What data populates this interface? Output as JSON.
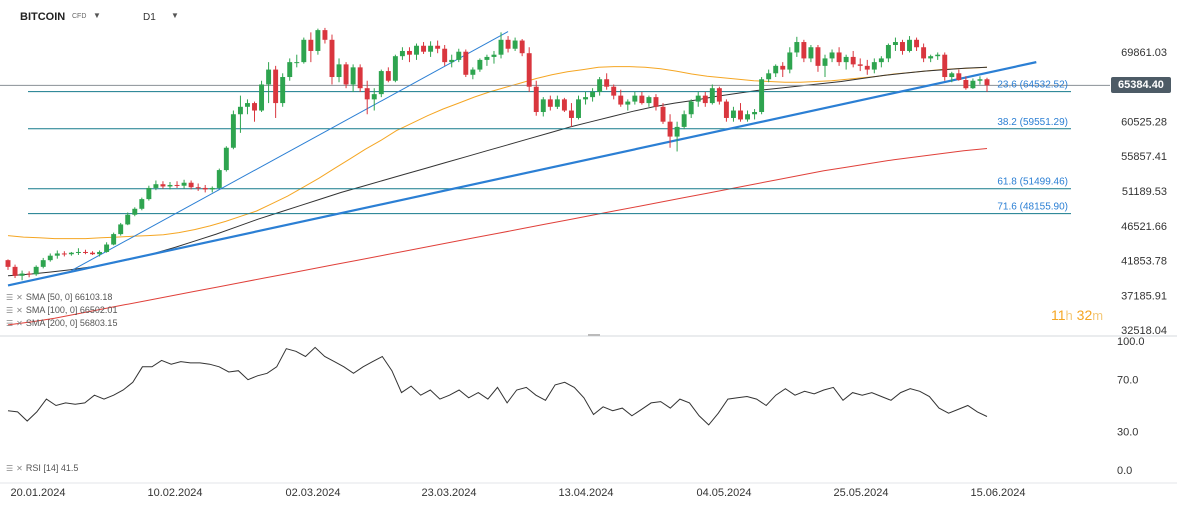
{
  "header": {
    "symbol": "BITCOIN",
    "instrument_type": "CFD",
    "timeframe": "D1"
  },
  "countdown": {
    "hours": "11",
    "h_unit": "h",
    "minutes": "32",
    "m_unit": "m"
  },
  "indicators": [
    {
      "label": "SMA [50, 0] 66103.18",
      "color": "#f5a623"
    },
    {
      "label": "SMA [100, 0] 66502.01",
      "color": "#333333"
    },
    {
      "label": "SMA [200, 0] 56803.15",
      "color": "#e0403a"
    }
  ],
  "rsi_legend": "RSI [14] 41.5",
  "current_price": "65384.40",
  "chart_data": [
    {
      "type": "candlestick",
      "title": "BITCOIN",
      "price_axis_labels": [
        "69861.03",
        "65384.40",
        "60525.28",
        "55857.41",
        "51189.53",
        "46521.66",
        "41853.78",
        "37185.91",
        "32518.04"
      ],
      "ylim": [
        32518.04,
        72500
      ],
      "x_tick_labels": [
        "20.01.2024",
        "10.02.2024",
        "02.03.2024",
        "23.03.2024",
        "13.04.2024",
        "04.05.2024",
        "25.05.2024",
        "15.06.2024"
      ],
      "ohlc": [
        [
          41900,
          42000,
          40600,
          41000
        ],
        [
          41000,
          41300,
          39500,
          39800
        ],
        [
          39800,
          40500,
          39200,
          40100
        ],
        [
          40100,
          40400,
          39600,
          40000
        ],
        [
          40000,
          41200,
          39800,
          41000
        ],
        [
          41000,
          42200,
          40800,
          41900
        ],
        [
          41900,
          42800,
          41700,
          42500
        ],
        [
          42500,
          43200,
          42100,
          42800
        ],
        [
          42800,
          43100,
          42400,
          42700
        ],
        [
          42700,
          43000,
          42500,
          42900
        ],
        [
          42900,
          43500,
          42600,
          43000
        ],
        [
          43000,
          43300,
          42700,
          42900
        ],
        [
          42900,
          43100,
          42600,
          42700
        ],
        [
          42700,
          43200,
          42400,
          43000
        ],
        [
          43000,
          44300,
          42900,
          44000
        ],
        [
          44000,
          45600,
          43900,
          45400
        ],
        [
          45400,
          46900,
          45200,
          46700
        ],
        [
          46700,
          48300,
          46600,
          48000
        ],
        [
          48000,
          49000,
          47800,
          48800
        ],
        [
          48800,
          50300,
          48600,
          50100
        ],
        [
          50100,
          51900,
          49900,
          51600
        ],
        [
          51600,
          52600,
          51300,
          52100
        ],
        [
          52100,
          52500,
          51500,
          51800
        ],
        [
          51800,
          52400,
          51400,
          52000
        ],
        [
          52000,
          52500,
          51600,
          51900
        ],
        [
          51900,
          52700,
          51500,
          52300
        ],
        [
          52300,
          52600,
          51400,
          51700
        ],
        [
          51700,
          52200,
          51200,
          51600
        ],
        [
          51600,
          52000,
          51000,
          51400
        ],
        [
          51400,
          51800,
          51000,
          51600
        ],
        [
          51600,
          54200,
          51500,
          54000
        ],
        [
          54000,
          57200,
          53800,
          57000
        ],
        [
          57000,
          62000,
          56800,
          61500
        ],
        [
          61500,
          64000,
          59000,
          62500
        ],
        [
          62500,
          63500,
          61500,
          63000
        ],
        [
          63000,
          63200,
          60500,
          62000
        ],
        [
          62000,
          66000,
          61800,
          65500
        ],
        [
          65500,
          68500,
          63000,
          67500
        ],
        [
          67500,
          68000,
          61000,
          63000
        ],
        [
          63000,
          67000,
          62500,
          66500
        ],
        [
          66500,
          69000,
          66000,
          68500
        ],
        [
          68500,
          69500,
          67800,
          68500
        ],
        [
          68500,
          71800,
          68300,
          71500
        ],
        [
          71500,
          72500,
          68500,
          70000
        ],
        [
          70000,
          73000,
          69500,
          72800
        ],
        [
          72800,
          73100,
          71000,
          71500
        ],
        [
          71500,
          72200,
          65500,
          66500
        ],
        [
          66500,
          69000,
          65800,
          68200
        ],
        [
          68200,
          68500,
          65000,
          65500
        ],
        [
          65500,
          68200,
          64500,
          67800
        ],
        [
          67800,
          68200,
          64500,
          65000
        ],
        [
          65000,
          66000,
          61500,
          63500
        ],
        [
          63500,
          65000,
          62000,
          64200
        ],
        [
          64200,
          67500,
          63800,
          67300
        ],
        [
          67300,
          67800,
          65800,
          66000
        ],
        [
          66000,
          69500,
          65800,
          69300
        ],
        [
          69300,
          70500,
          68800,
          70000
        ],
        [
          70000,
          70500,
          68500,
          69500
        ],
        [
          69500,
          71000,
          68800,
          70700
        ],
        [
          70700,
          71200,
          69600,
          69900
        ],
        [
          69900,
          71300,
          69200,
          70700
        ],
        [
          70700,
          71400,
          69700,
          70300
        ],
        [
          70300,
          70800,
          68000,
          68500
        ],
        [
          68500,
          69500,
          67800,
          68800
        ],
        [
          68800,
          70300,
          68500,
          69900
        ],
        [
          69900,
          70200,
          66500,
          66800
        ],
        [
          66800,
          67800,
          66200,
          67500
        ],
        [
          67500,
          69000,
          67200,
          68800
        ],
        [
          68800,
          69500,
          68000,
          69200
        ],
        [
          69200,
          70000,
          68300,
          69500
        ],
        [
          69500,
          72500,
          69000,
          71500
        ],
        [
          71500,
          72000,
          69800,
          70300
        ],
        [
          70300,
          71800,
          70000,
          71400
        ],
        [
          71400,
          71600,
          69300,
          69700
        ],
        [
          69700,
          70500,
          64500,
          65200
        ],
        [
          65200,
          66000,
          61300,
          61800
        ],
        [
          61800,
          63800,
          61200,
          63500
        ],
        [
          63500,
          64000,
          62000,
          62500
        ],
        [
          62500,
          64000,
          62200,
          63500
        ],
        [
          63500,
          63700,
          61800,
          62000
        ],
        [
          62000,
          63000,
          59800,
          61000
        ],
        [
          61000,
          64000,
          60800,
          63500
        ],
        [
          63500,
          64500,
          62800,
          63800
        ],
        [
          63800,
          65000,
          63200,
          64500
        ],
        [
          64500,
          66500,
          64000,
          66200
        ],
        [
          66200,
          67000,
          64800,
          65200
        ],
        [
          65200,
          65500,
          63500,
          64000
        ],
        [
          64000,
          64800,
          62500,
          62800
        ],
        [
          62800,
          63500,
          62000,
          63200
        ],
        [
          63200,
          64500,
          62800,
          64000
        ],
        [
          64000,
          64500,
          62800,
          63000
        ],
        [
          63000,
          64000,
          62500,
          63800
        ],
        [
          63800,
          64200,
          62000,
          62500
        ],
        [
          62500,
          63000,
          60200,
          60500
        ],
        [
          60500,
          61500,
          57000,
          58500
        ],
        [
          58500,
          60500,
          56500,
          59800
        ],
        [
          59800,
          62000,
          59500,
          61500
        ],
        [
          61500,
          63500,
          61000,
          63200
        ],
        [
          63200,
          64500,
          62500,
          64000
        ],
        [
          64000,
          64500,
          62500,
          63000
        ],
        [
          63000,
          65500,
          62800,
          65000
        ],
        [
          65000,
          65200,
          62800,
          63200
        ],
        [
          63200,
          63500,
          60500,
          61000
        ],
        [
          61000,
          62500,
          60500,
          62000
        ],
        [
          62000,
          63000,
          60500,
          60800
        ],
        [
          60800,
          62000,
          60500,
          61500
        ],
        [
          61500,
          62200,
          60800,
          61800
        ],
        [
          61800,
          66500,
          61500,
          66200
        ],
        [
          66200,
          67500,
          65800,
          67000
        ],
        [
          67000,
          68200,
          66500,
          68000
        ],
        [
          68000,
          68500,
          66500,
          67500
        ],
        [
          67500,
          70500,
          67000,
          69800
        ],
        [
          69800,
          71900,
          69200,
          71200
        ],
        [
          71200,
          71500,
          68500,
          69000
        ],
        [
          69000,
          70800,
          68500,
          70500
        ],
        [
          70500,
          70800,
          67200,
          68000
        ],
        [
          68000,
          69500,
          66500,
          69000
        ],
        [
          69000,
          70200,
          68500,
          69800
        ],
        [
          69800,
          70500,
          68000,
          68500
        ],
        [
          68500,
          69500,
          67500,
          69200
        ],
        [
          69200,
          70000,
          67800,
          68200
        ],
        [
          68200,
          69000,
          67300,
          68000
        ],
        [
          68000,
          68800,
          66800,
          67500
        ],
        [
          67500,
          69000,
          67000,
          68500
        ],
        [
          68500,
          69300,
          67800,
          69000
        ],
        [
          69000,
          71000,
          68500,
          70800
        ],
        [
          70800,
          71800,
          70000,
          71200
        ],
        [
          71200,
          71500,
          69500,
          70000
        ],
        [
          70000,
          72000,
          69800,
          71500
        ],
        [
          71500,
          71800,
          70000,
          70500
        ],
        [
          70500,
          71000,
          68500,
          69000
        ],
        [
          69000,
          69500,
          68500,
          69300
        ],
        [
          69300,
          69800,
          68800,
          69500
        ],
        [
          69500,
          69800,
          66000,
          66500
        ],
        [
          66500,
          67200,
          65800,
          67000
        ],
        [
          67000,
          67500,
          66000,
          66100
        ],
        [
          66100,
          66600,
          64800,
          65000
        ],
        [
          65000,
          66300,
          64900,
          66000
        ],
        [
          66000,
          66600,
          65500,
          66200
        ],
        [
          66200,
          66400,
          64500,
          65384
        ]
      ],
      "sma": [
        {
          "label": "SMA [50, 0] 66103.18",
          "color": "#f5a623",
          "y": [
            45200,
            45000,
            44900,
            44800,
            44800,
            44800,
            44900,
            45000,
            45100,
            45200,
            45300,
            45600,
            46000,
            46500,
            47100,
            47800,
            48500,
            49500,
            50500,
            51700,
            52900,
            54200,
            55500,
            56800,
            58000,
            59300,
            60300,
            61300,
            62200,
            63000,
            63800,
            64500,
            65100,
            65700,
            66300,
            66800,
            67200,
            67500,
            67800,
            67900,
            67900,
            67800,
            67600,
            67300,
            66900,
            66600,
            66400,
            66200,
            66000,
            65900,
            65800,
            65800,
            65900,
            66000,
            66200,
            66400,
            66600,
            66900,
            67100,
            67300,
            67500,
            67600,
            67700,
            67800
          ]
        },
        {
          "label": "SMA [100, 0] 66502.01",
          "color": "#333333",
          "y": [
            39800,
            40000,
            40300,
            40600,
            41000,
            41500,
            42100,
            42800,
            43600,
            44500,
            45400,
            46400,
            47400,
            48300,
            49200,
            50100,
            51000,
            51800,
            52600,
            53400,
            54200,
            55000,
            55800,
            56600,
            57400,
            58200,
            59000,
            59800,
            60500,
            61200,
            61900,
            62500,
            63000,
            63400,
            63900,
            64300,
            64700,
            65000,
            65300,
            65600,
            65900,
            66300,
            66700,
            67000,
            67300,
            67500,
            67700,
            67800
          ]
        },
        {
          "label": "SMA [200, 0] 56803.15",
          "color": "#e0403a",
          "y": [
            33200,
            33600,
            34100,
            34700,
            35300,
            35900,
            36500,
            37100,
            37700,
            38300,
            38900,
            39500,
            40100,
            40700,
            41300,
            41900,
            42500,
            43100,
            43700,
            44300,
            44900,
            45500,
            46100,
            46700,
            47300,
            47900,
            48500,
            49100,
            49700,
            50300,
            50900,
            51500,
            52100,
            52700,
            53300,
            53900,
            54400,
            54900,
            55400,
            55800,
            56200,
            56600,
            56900
          ]
        }
      ],
      "fib_levels": [
        {
          "ratio": "23.6",
          "label": "23.6 (64532.52)",
          "value": 64532.52
        },
        {
          "ratio": "38.2",
          "label": "38.2 (59551.29)",
          "value": 59551.29
        },
        {
          "ratio": "61.8",
          "label": "61.8 (51499.46)",
          "value": 51499.46
        },
        {
          "ratio": "71.6",
          "label": "71.6 (48155.90)",
          "value": 48155.9
        }
      ],
      "horizontal_line_value": 65384.4,
      "trendlines": [
        {
          "from": [
            0,
            38500
          ],
          "to": [
            146,
            68500
          ],
          "color": "#2b7fd4"
        },
        {
          "from": [
            9,
            40500
          ],
          "to": [
            71,
            72600
          ],
          "color": "#2b7fd4"
        }
      ],
      "grid": false
    },
    {
      "type": "line",
      "title": "RSI [14] 41.5",
      "ylim": [
        0,
        100
      ],
      "y_tick_labels": [
        "100.0",
        "70.0",
        "30.0",
        "0.0"
      ],
      "y": [
        46,
        45,
        38,
        45,
        55,
        50,
        52,
        51,
        52,
        58,
        55,
        58,
        62,
        68,
        80,
        80,
        85,
        82,
        84,
        83,
        83,
        82,
        80,
        76,
        77,
        70,
        73,
        75,
        80,
        94,
        92,
        88,
        95,
        88,
        84,
        80,
        75,
        80,
        84,
        88,
        77,
        60,
        65,
        58,
        62,
        55,
        58,
        62,
        56,
        60,
        55,
        64,
        52,
        62,
        64,
        58,
        54,
        66,
        68,
        64,
        56,
        43,
        49,
        46,
        48,
        42,
        47,
        52,
        53,
        48,
        55,
        52,
        42,
        35,
        44,
        55,
        56,
        57,
        55,
        50,
        58,
        63,
        58,
        61,
        59,
        62,
        64,
        54,
        60,
        58,
        60,
        57,
        54,
        60,
        63,
        61,
        57,
        48,
        44,
        47,
        50,
        45,
        41.5
      ]
    }
  ]
}
